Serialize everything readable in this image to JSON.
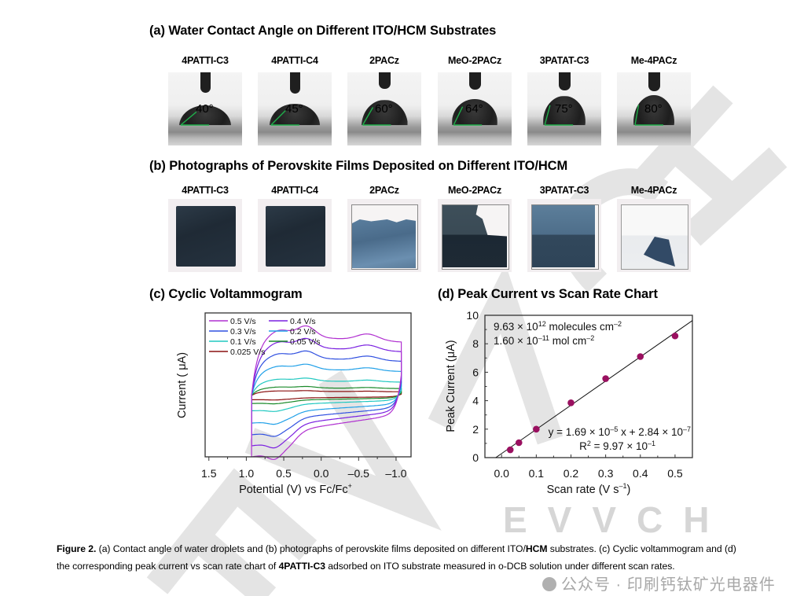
{
  "panel_a": {
    "title": "(a) Water Contact Angle on Different ITO/HCM Substrates",
    "samples": [
      {
        "name": "4PATTI-C3",
        "angle_label": "40°",
        "angle_deg": 40
      },
      {
        "name": "4PATTI-C4",
        "angle_label": "45°",
        "angle_deg": 45
      },
      {
        "name": "2PACz",
        "angle_label": "60°",
        "angle_deg": 60
      },
      {
        "name": "MeO-2PACz",
        "angle_label": "64°",
        "angle_deg": 64
      },
      {
        "name": "3PATAT-C3",
        "angle_label": "75°",
        "angle_deg": 75
      },
      {
        "name": "Me-4PACz",
        "angle_label": "80°",
        "angle_deg": 80
      }
    ]
  },
  "panel_b": {
    "title": "(b) Photographs of Perovskite Films Deposited on Different ITO/HCM",
    "samples": [
      {
        "name": "4PATTI-C3",
        "film_coverage": "full"
      },
      {
        "name": "4PATTI-C4",
        "film_coverage": "full"
      },
      {
        "name": "2PACz",
        "film_coverage": "partial-top-peeled"
      },
      {
        "name": "MeO-2PACz",
        "film_coverage": "partial-right-peeled"
      },
      {
        "name": "3PATAT-C3",
        "film_coverage": "nearly-full"
      },
      {
        "name": "Me-4PACz",
        "film_coverage": "mostly-peeled"
      }
    ]
  },
  "panel_c": {
    "title": "(c) Cyclic Voltammogram"
  },
  "panel_d": {
    "title": "(d) Peak Current vs Scan Rate Chart"
  },
  "chart_data": [
    {
      "type": "line",
      "title": "(c) Cyclic Voltammogram",
      "xlabel": "Potential (V) vs Fc/Fc+",
      "xlabel_main": "Potential (V) vs Fc/Fc",
      "xlabel_sup": "+",
      "ylabel": "Current ( μA)",
      "xlim": [
        1.55,
        -1.2
      ],
      "x_reversed": true,
      "x_ticks": [
        1.5,
        1.0,
        0.5,
        0.0,
        -0.5,
        -1.0
      ],
      "x_tick_labels": [
        "1.5",
        "1.0",
        "0.5",
        "0.0",
        "–0.5",
        "–1.0"
      ],
      "y_ticks_shown": false,
      "potential_window": [
        0.93,
        -1.07
      ],
      "legend": {
        "placement": "top-left",
        "columns": 2
      },
      "series": [
        {
          "name": "0.5 V/s",
          "scan_rate": 0.5,
          "color": "#b030d0",
          "amplitude": 1.0
        },
        {
          "name": "0.4 V/s",
          "scan_rate": 0.4,
          "color": "#7a20e0",
          "amplitude": 0.82
        },
        {
          "name": "0.3 V/s",
          "scan_rate": 0.3,
          "color": "#3050e0",
          "amplitude": 0.64
        },
        {
          "name": "0.2 V/s",
          "scan_rate": 0.2,
          "color": "#20a0e8",
          "amplitude": 0.45
        },
        {
          "name": "0.1 V/s",
          "scan_rate": 0.1,
          "color": "#20c8c0",
          "amplitude": 0.25
        },
        {
          "name": "0.05 V/s",
          "scan_rate": 0.05,
          "color": "#1a8a2a",
          "amplitude": 0.13
        },
        {
          "name": "0.025 V/s",
          "scan_rate": 0.025,
          "color": "#8a1010",
          "amplitude": 0.07
        }
      ]
    },
    {
      "type": "scatter",
      "title": "(d) Peak Current vs Scan Rate Chart",
      "xlabel": "Scan rate (V s–1)",
      "xlabel_main": "Scan rate (V s",
      "xlabel_sup": "–1",
      "xlabel_end": ")",
      "ylabel": "Peak Current (μA)",
      "xlim": [
        -0.048,
        0.55
      ],
      "ylim": [
        0,
        10
      ],
      "x_ticks": [
        0.0,
        0.1,
        0.2,
        0.3,
        0.4,
        0.5
      ],
      "x_tick_labels": [
        "0.0",
        "0.1",
        "0.2",
        "0.3",
        "0.4",
        "0.5"
      ],
      "y_ticks": [
        0,
        2,
        4,
        6,
        8,
        10
      ],
      "y_tick_labels": [
        "0",
        "2",
        "4",
        "6",
        "8",
        "10"
      ],
      "points": [
        {
          "x": 0.025,
          "y": 0.55
        },
        {
          "x": 0.05,
          "y": 1.05
        },
        {
          "x": 0.1,
          "y": 2.0
        },
        {
          "x": 0.2,
          "y": 3.85
        },
        {
          "x": 0.3,
          "y": 5.55
        },
        {
          "x": 0.4,
          "y": 7.1
        },
        {
          "x": 0.5,
          "y": 8.55
        }
      ],
      "point_color": "#9a1060",
      "fit": {
        "slope_uA_per_Vs": 16.9,
        "intercept_uA": 0.284
      },
      "annotations": {
        "surface_density_1": {
          "pre": "9.63 × 10",
          "sup": "12",
          "post": " molecules cm",
          "sup2": "–2"
        },
        "surface_density_2": {
          "pre": "1.60 × 10",
          "sup": "–11",
          "post": " mol cm",
          "sup2": "–2"
        },
        "equation": {
          "p1": "y = 1.69 × 10",
          "s1": "–5",
          "p2": " x + 2.84 × 10",
          "s2": "–7"
        },
        "r_squared": {
          "p1": "R",
          "s1": "2",
          "p2": " = 9.97 × 10",
          "s2": "–1"
        }
      }
    }
  ],
  "caption": {
    "label": "Figure 2.",
    "line1_a": " (a) Contact angle of water droplets and (b) photographs of perovskite films deposited on different ITO/",
    "line1_bold": "HCM",
    "line1_b": " substrates. (c) Cyclic voltammogram and (d)",
    "line2_a": "the corresponding peak current vs scan rate chart of ",
    "line2_bold": "4PATTI-C3",
    "line2_b": " adsorbed on ITO substrate measured in o-DCB solution under different scan rates."
  },
  "watermark": {
    "publisher_text": "EVVCH",
    "wechat_text": "公众号 · 印刷钙钛矿光电器件"
  }
}
